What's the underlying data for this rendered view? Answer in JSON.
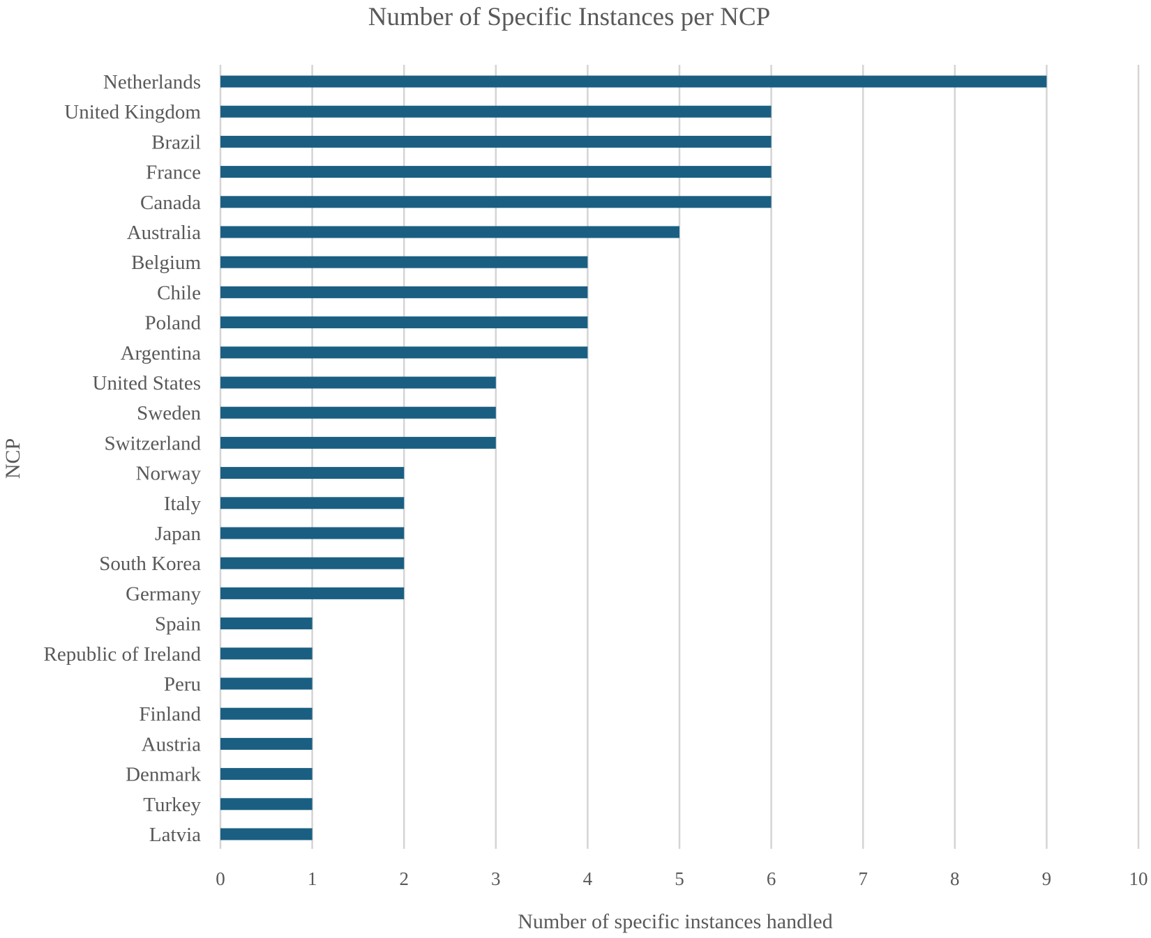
{
  "chart_data": {
    "type": "bar",
    "orientation": "horizontal",
    "title": "Number of Specific Instances per NCP",
    "xlabel": "Number of specific instances handled",
    "ylabel": "NCP",
    "xlim": [
      0,
      10
    ],
    "xticks": [
      0,
      1,
      2,
      3,
      4,
      5,
      6,
      7,
      8,
      9,
      10
    ],
    "grid": "vertical",
    "legend": "none",
    "categories": [
      "Netherlands",
      "United Kingdom",
      "Brazil",
      "France",
      "Canada",
      "Australia",
      "Belgium",
      "Chile",
      "Poland",
      "Argentina",
      "United States",
      "Sweden",
      "Switzerland",
      "Norway",
      "Italy",
      "Japan",
      "South Korea",
      "Germany",
      "Spain",
      "Republic of Ireland",
      "Peru",
      "Finland",
      "Austria",
      "Denmark",
      "Turkey",
      "Latvia"
    ],
    "values": [
      9,
      6,
      6,
      6,
      6,
      5,
      4,
      4,
      4,
      4,
      3,
      3,
      3,
      2,
      2,
      2,
      2,
      2,
      1,
      1,
      1,
      1,
      1,
      1,
      1,
      1
    ],
    "bar_color": "#1a5f82",
    "grid_color": "#d4d4d4",
    "text_color": "#595959"
  }
}
